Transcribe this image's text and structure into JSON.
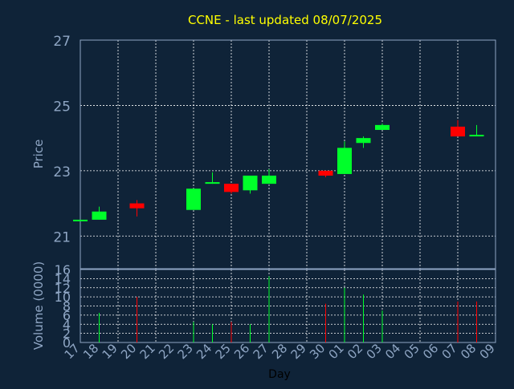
{
  "colors": {
    "background": "#0f2338",
    "frame": "#8fa6c4",
    "grid": "#ffffff",
    "title": "#ffff00",
    "label": "#8fa6c4",
    "xlabel": "#000000",
    "up": "#00ff2a",
    "down": "#ff0000"
  },
  "chart_data": [
    {
      "type": "candlestick",
      "title": "CCNE - last updated 08/07/2025",
      "ylabel": "Price",
      "ylim": [
        20,
        27
      ],
      "yticks": [
        21,
        23,
        25,
        27
      ],
      "grid": true,
      "candles": [
        {
          "x": "17",
          "open": 21.5,
          "high": 21.5,
          "low": 21.5,
          "close": 21.5
        },
        {
          "x": "18",
          "open": 21.5,
          "high": 21.9,
          "low": 21.5,
          "close": 21.75
        },
        {
          "x": "20",
          "open": 22.0,
          "high": 22.1,
          "low": 21.6,
          "close": 21.85
        },
        {
          "x": "23",
          "open": 21.8,
          "high": 22.45,
          "low": 21.8,
          "close": 22.45
        },
        {
          "x": "24",
          "open": 22.6,
          "high": 22.95,
          "low": 22.6,
          "close": 22.65
        },
        {
          "x": "25",
          "open": 22.6,
          "high": 22.6,
          "low": 22.3,
          "close": 22.35
        },
        {
          "x": "26",
          "open": 22.4,
          "high": 22.85,
          "low": 22.3,
          "close": 22.85
        },
        {
          "x": "27",
          "open": 22.6,
          "high": 23.05,
          "low": 22.6,
          "close": 22.85
        },
        {
          "x": "30",
          "open": 23.0,
          "high": 23.0,
          "low": 22.8,
          "close": 22.85
        },
        {
          "x": "01",
          "open": 22.9,
          "high": 23.9,
          "low": 22.9,
          "close": 23.7
        },
        {
          "x": "02",
          "open": 23.85,
          "high": 24.05,
          "low": 23.7,
          "close": 24.0
        },
        {
          "x": "03",
          "open": 24.25,
          "high": 24.45,
          "low": 24.25,
          "close": 24.4
        },
        {
          "x": "07",
          "open": 24.35,
          "high": 24.55,
          "low": 24.05,
          "close": 24.05
        },
        {
          "x": "08",
          "open": 24.1,
          "high": 24.4,
          "low": 24.1,
          "close": 24.1
        }
      ]
    },
    {
      "type": "bar",
      "xlabel": "Day",
      "ylabel": "Volume (0000)",
      "ylim": [
        0,
        16
      ],
      "yticks": [
        0,
        2,
        4,
        6,
        8,
        10,
        12,
        14,
        16
      ],
      "grid": true,
      "categories": [
        "17",
        "18",
        "19",
        "20",
        "21",
        "22",
        "23",
        "24",
        "25",
        "26",
        "27",
        "28",
        "29",
        "30",
        "01",
        "02",
        "03",
        "04",
        "05",
        "06",
        "07",
        "08",
        "09"
      ],
      "values": [
        {
          "x": "18",
          "v": 6.5,
          "dir": "up"
        },
        {
          "x": "20",
          "v": 10,
          "dir": "down"
        },
        {
          "x": "23",
          "v": 4.5,
          "dir": "up"
        },
        {
          "x": "24",
          "v": 4,
          "dir": "up"
        },
        {
          "x": "25",
          "v": 4.5,
          "dir": "down"
        },
        {
          "x": "26",
          "v": 4,
          "dir": "up"
        },
        {
          "x": "27",
          "v": 14.5,
          "dir": "up"
        },
        {
          "x": "30",
          "v": 8.5,
          "dir": "down"
        },
        {
          "x": "01",
          "v": 12,
          "dir": "up"
        },
        {
          "x": "02",
          "v": 10.5,
          "dir": "up"
        },
        {
          "x": "03",
          "v": 7,
          "dir": "up"
        },
        {
          "x": "07",
          "v": 9,
          "dir": "down"
        },
        {
          "x": "08",
          "v": 9,
          "dir": "down"
        }
      ]
    }
  ]
}
